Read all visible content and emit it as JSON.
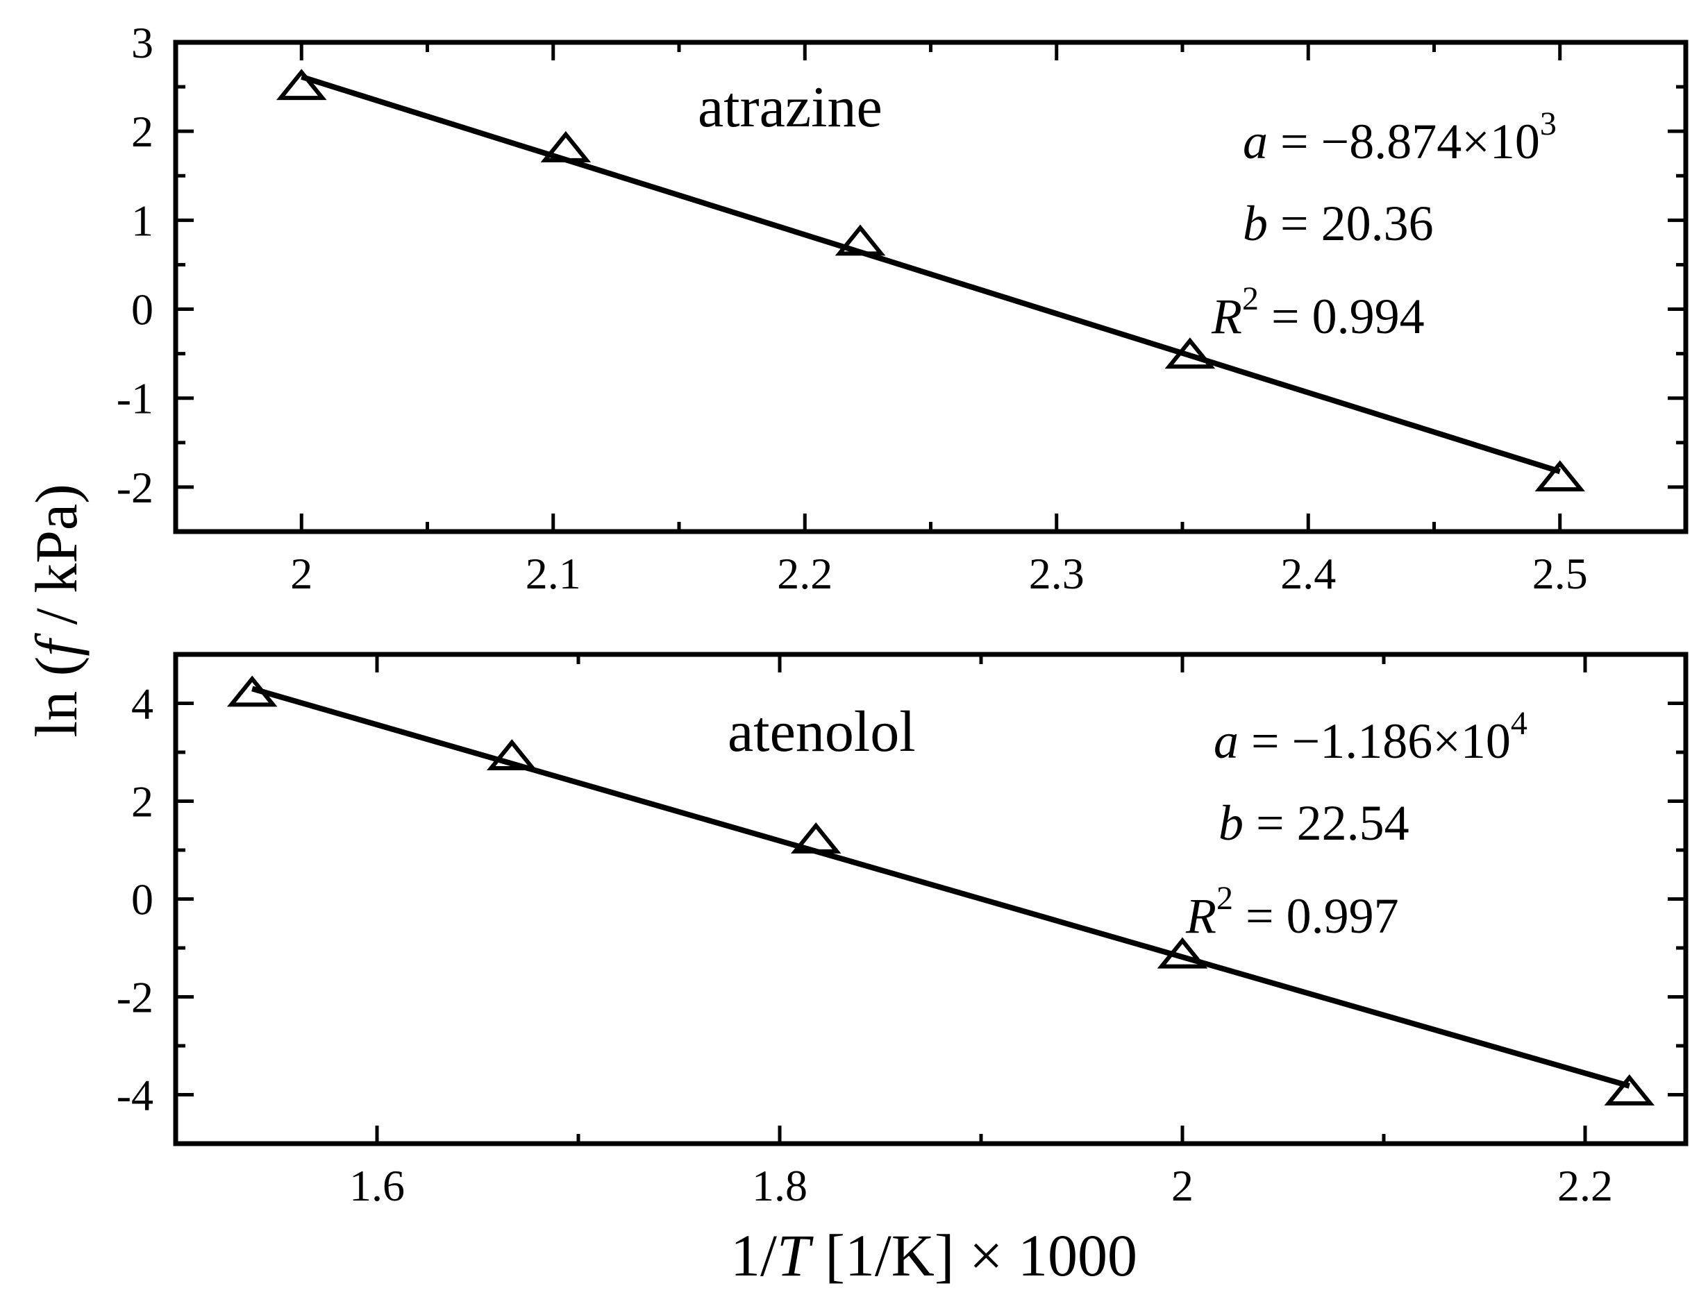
{
  "chart_data": [
    {
      "type": "scatter",
      "panel_label": "atrazine",
      "x": [
        2.0,
        2.105,
        2.222,
        2.353,
        2.5
      ],
      "y": [
        2.5,
        1.8,
        0.75,
        -0.52,
        -1.9
      ],
      "fit_line": {
        "x": [
          2.0,
          2.5
        ],
        "y": [
          2.612,
          -1.825
        ]
      },
      "xlim": [
        1.95,
        2.55
      ],
      "ylim": [
        -2.5,
        3
      ],
      "xticks": [
        "2",
        "2.1",
        "2.2",
        "2.3",
        "2.4",
        "2.5"
      ],
      "yticks": [
        "3",
        "2",
        "1",
        "0",
        "-1",
        "-2"
      ],
      "annotations": {
        "a_sym": "a",
        "a_val": " = −8.874×10",
        "a_exp": "3",
        "b_sym": "b",
        "b_val": " = 20.36",
        "r_sym": "R",
        "r_exp": "2",
        "r_val": " = 0.994"
      },
      "marker": "open-triangle"
    },
    {
      "type": "scatter",
      "panel_label": "atenolol",
      "x": [
        1.538,
        1.667,
        1.818,
        2.0,
        2.222
      ],
      "y": [
        4.2,
        2.9,
        1.2,
        -1.15,
        -3.95
      ],
      "fit_line": {
        "x": [
          1.538,
          2.222
        ],
        "y": [
          4.299,
          -3.821
        ]
      },
      "xlim": [
        1.5,
        2.25
      ],
      "ylim": [
        -5,
        5
      ],
      "xticks": [
        "1.6",
        "1.8",
        "2",
        "2.2"
      ],
      "yticks": [
        "4",
        "2",
        "0",
        "-2",
        "-4"
      ],
      "annotations": {
        "a_sym": "a",
        "a_val": " = −1.186×10",
        "a_exp": "4",
        "b_sym": "b",
        "b_val": " = 22.54",
        "r_sym": "R",
        "r_exp": "2",
        "r_val": " = 0.997"
      },
      "marker": "open-triangle"
    }
  ],
  "ylabel": "ln (f / kPa)",
  "ylabel_parts": {
    "pre": "ln (",
    "f": "f",
    "post": " / kPa)"
  },
  "xlabel_parts": {
    "pre": "1/",
    "T": "T",
    "post": " [1/K]  × 1000"
  }
}
